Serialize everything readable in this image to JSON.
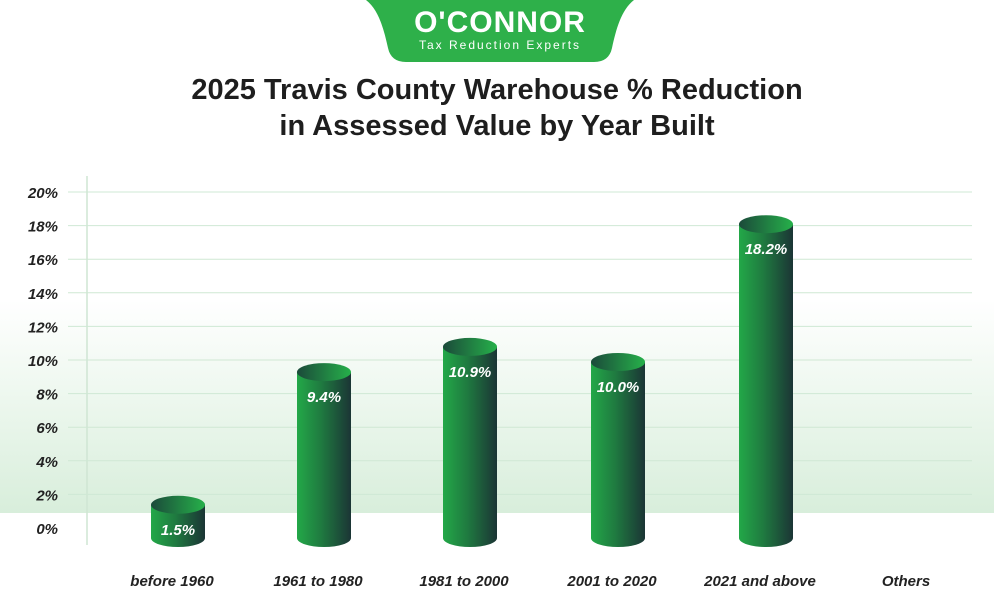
{
  "logo": {
    "brand": "O'CONNOR",
    "tagline": "Tax Reduction Experts",
    "color": "#2eb04a"
  },
  "chart_data": {
    "type": "bar",
    "title_line1": "2025 Travis County Warehouse % Reduction",
    "title_line2": "in Assessed Value by Year Built",
    "categories": [
      "before 1960",
      "1961 to 1980",
      "1981 to 2000",
      "2001 to 2020",
      "2021 and above",
      "Others"
    ],
    "values": [
      1.5,
      9.4,
      10.9,
      10.0,
      18.2,
      null
    ],
    "data_labels": [
      "1.5%",
      "9.4%",
      "10.9%",
      "10.0%",
      "18.2%",
      ""
    ],
    "yticks": [
      "0%",
      "2%",
      "4%",
      "6%",
      "8%",
      "10%",
      "12%",
      "14%",
      "16%",
      "18%",
      "20%"
    ],
    "ylim": [
      0,
      20
    ],
    "grid": true,
    "bar_color": "#22a847",
    "bar_dark": "#1b3535"
  }
}
